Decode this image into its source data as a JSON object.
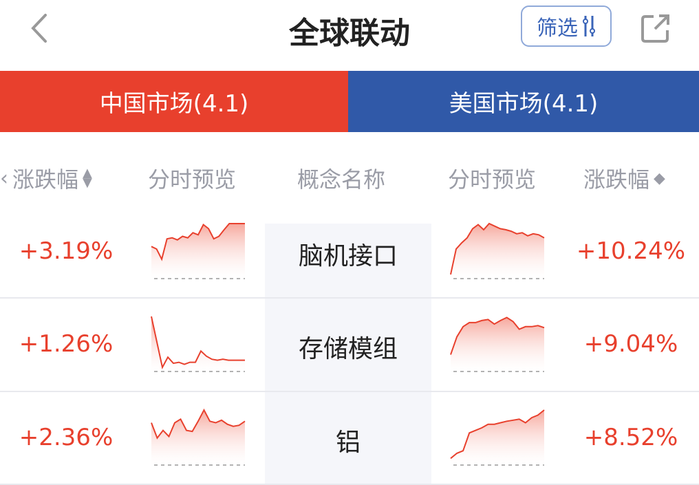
{
  "header": {
    "title": "全球联动",
    "filter_label": "筛选",
    "icons": {
      "back": "chevron-left-icon",
      "filter": "sliders-icon",
      "share": "share-icon"
    }
  },
  "tabs": [
    {
      "label": "中国市场(4.1)",
      "color": "#e8402d",
      "active": true
    },
    {
      "label": "美国市场(4.1)",
      "color": "#3059a8"
    }
  ],
  "columns": {
    "cn_change": "涨跌幅",
    "cn_preview": "分时预览",
    "concept": "概念名称",
    "us_preview": "分时预览",
    "us_change": "涨跌幅"
  },
  "colors": {
    "up": "#e8402d",
    "center_bg": "#f5f6fa"
  },
  "rows": [
    {
      "concept": "脑机接口",
      "cn_change": "+3.19%",
      "us_change": "+10.24%",
      "cn_trend": [
        0.55,
        0.5,
        0.3,
        0.7,
        0.72,
        0.68,
        0.75,
        0.72,
        0.82,
        0.78,
        0.98,
        0.9,
        0.7,
        0.75,
        0.88,
        1,
        1,
        1,
        1
      ],
      "us_trend": [
        0,
        0.5,
        0.62,
        0.72,
        0.9,
        0.98,
        0.88,
        1,
        0.95,
        0.9,
        0.88,
        0.85,
        0.8,
        0.82,
        0.76,
        0.8,
        0.78,
        0.72
      ]
    },
    {
      "concept": "存储模组",
      "cn_change": "+1.26%",
      "us_change": "+9.04%",
      "cn_trend": [
        1,
        0.5,
        0,
        0.2,
        0.08,
        0.1,
        0.06,
        0.1,
        0.1,
        0.32,
        0.22,
        0.16,
        0.14,
        0.16,
        0.14,
        0.14,
        0.14,
        0.14
      ],
      "us_trend": [
        0.25,
        0.6,
        0.8,
        0.88,
        0.88,
        0.92,
        0.94,
        0.85,
        0.92,
        0.98,
        0.9,
        0.75,
        0.8,
        0.8,
        0.82,
        0.78
      ],
      "cn_baseline_low": true
    },
    {
      "concept": "铝",
      "cn_change": "+2.36%",
      "us_change": "+8.52%",
      "cn_trend": [
        0.75,
        0.45,
        0.6,
        0.48,
        0.75,
        0.82,
        0.6,
        0.58,
        0.78,
        1,
        0.78,
        0.75,
        0.8,
        0.72,
        0.68,
        0.7,
        0.78
      ],
      "us_trend": [
        0.05,
        0.15,
        0.2,
        0.55,
        0.6,
        0.65,
        0.72,
        0.72,
        0.75,
        0.78,
        0.8,
        0.82,
        0.75,
        0.85,
        0.9,
        1
      ]
    }
  ]
}
